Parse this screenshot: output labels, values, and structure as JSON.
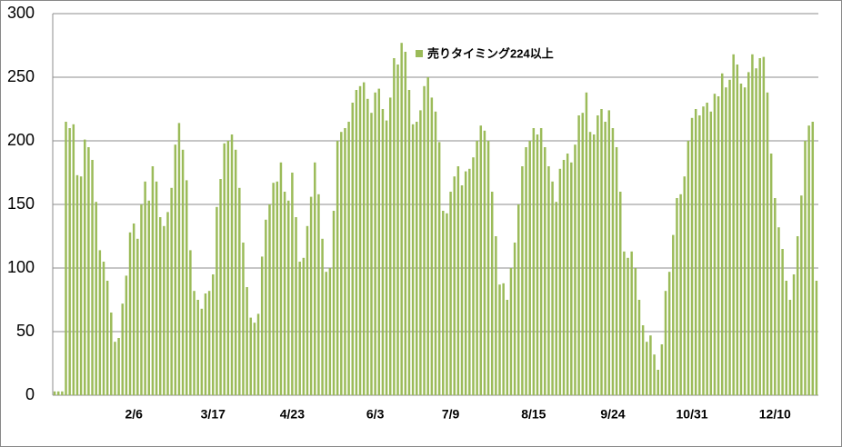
{
  "chart_data": {
    "type": "bar",
    "categories": [
      null,
      null,
      null,
      null,
      null,
      null,
      null,
      null,
      null,
      null,
      null,
      null,
      null,
      null,
      null,
      null,
      null,
      null,
      null,
      null,
      null,
      "2/6",
      null,
      null,
      null,
      null,
      null,
      null,
      null,
      null,
      null,
      null,
      null,
      null,
      null,
      null,
      null,
      null,
      null,
      null,
      null,
      null,
      "3/17",
      null,
      null,
      null,
      null,
      null,
      null,
      null,
      null,
      null,
      null,
      null,
      null,
      null,
      null,
      null,
      null,
      null,
      null,
      null,
      null,
      "4/23",
      null,
      null,
      null,
      null,
      null,
      null,
      null,
      null,
      null,
      null,
      null,
      null,
      null,
      null,
      null,
      null,
      null,
      null,
      null,
      null,
      null,
      "6/3",
      null,
      null,
      null,
      null,
      null,
      null,
      null,
      null,
      null,
      null,
      null,
      null,
      null,
      null,
      null,
      null,
      null,
      null,
      null,
      "7/9",
      null,
      null,
      null,
      null,
      null,
      null,
      null,
      null,
      null,
      null,
      null,
      null,
      null,
      null,
      null,
      null,
      null,
      null,
      null,
      null,
      null,
      "8/15",
      null,
      null,
      null,
      null,
      null,
      null,
      null,
      null,
      null,
      null,
      null,
      null,
      null,
      null,
      null,
      null,
      null,
      null,
      null,
      null,
      "9/24",
      null,
      null,
      null,
      null,
      null,
      null,
      null,
      null,
      null,
      null,
      null,
      null,
      null,
      null,
      null,
      null,
      null,
      null,
      null,
      null,
      "10/31",
      null,
      null,
      null,
      null,
      null,
      null,
      null,
      null,
      null,
      null,
      null,
      null,
      null,
      null,
      null,
      null,
      null,
      null,
      null,
      null,
      null,
      "12/10",
      null,
      null,
      null,
      null,
      null,
      null,
      null,
      null,
      null,
      null,
      null
    ],
    "series": [
      {
        "name": "売りタイミング224以上",
        "color": "#9bbb59",
        "values": [
          3,
          3,
          3,
          215,
          210,
          213,
          173,
          172,
          201,
          195,
          185,
          152,
          114,
          105,
          90,
          65,
          42,
          45,
          72,
          94,
          128,
          135,
          123,
          150,
          168,
          153,
          180,
          168,
          140,
          133,
          144,
          163,
          197,
          214,
          193,
          169,
          114,
          82,
          75,
          68,
          80,
          82,
          95,
          148,
          170,
          198,
          200,
          205,
          193,
          163,
          120,
          85,
          61,
          57,
          64,
          109,
          138,
          150,
          167,
          168,
          183,
          160,
          153,
          175,
          140,
          105,
          108,
          133,
          156,
          183,
          158,
          123,
          97,
          100,
          145,
          200,
          207,
          210,
          215,
          230,
          240,
          243,
          246,
          233,
          222,
          238,
          241,
          225,
          216,
          234,
          265,
          260,
          277,
          270,
          240,
          213,
          215,
          224,
          243,
          250,
          234,
          223,
          199,
          145,
          143,
          160,
          172,
          180,
          165,
          176,
          178,
          187,
          200,
          212,
          208,
          200,
          160,
          125,
          87,
          88,
          75,
          100,
          120,
          150,
          180,
          195,
          200,
          210,
          205,
          210,
          195,
          180,
          168,
          152,
          178,
          185,
          190,
          183,
          197,
          220,
          222,
          238,
          207,
          205,
          220,
          225,
          215,
          224,
          210,
          195,
          160,
          113,
          108,
          113,
          100,
          75,
          55,
          42,
          47,
          32,
          20,
          40,
          82,
          97,
          126,
          155,
          158,
          172,
          200,
          218,
          225,
          220,
          227,
          230,
          223,
          237,
          235,
          253,
          242,
          248,
          268,
          260,
          245,
          242,
          254,
          268,
          257,
          265,
          266,
          238,
          190,
          155,
          132,
          115,
          90,
          75,
          95,
          125,
          157,
          200,
          212,
          215,
          90
        ]
      }
    ],
    "ylim": [
      0,
      300
    ],
    "yticks": [
      0,
      50,
      100,
      150,
      200,
      250,
      300
    ],
    "grid": true
  }
}
